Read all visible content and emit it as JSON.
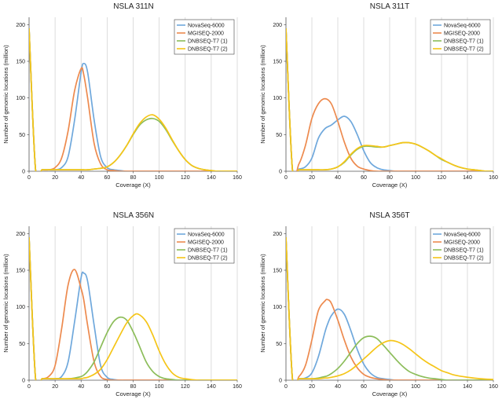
{
  "colors": {
    "NovaSeq-6000": "#6fa8dc",
    "MGISEQ-2000": "#ed8a4e",
    "DNBSEQ-T7 (1)": "#8cbd5a",
    "DNBSEQ-T7 (2)": "#f5c518"
  },
  "chart_data": [
    {
      "type": "line",
      "title": "NSLA 311N",
      "xlabel": "Coverage (X)",
      "ylabel": "Number of genomic locations (million)",
      "xlim": [
        0,
        160
      ],
      "ylim": [
        0,
        210
      ],
      "xticks": [
        0,
        20,
        40,
        60,
        80,
        100,
        120,
        140,
        160
      ],
      "yticks": [
        0,
        50,
        100,
        150,
        200
      ],
      "x": [
        0,
        5,
        10,
        15,
        20,
        25,
        30,
        35,
        40,
        42,
        45,
        50,
        55,
        60,
        65,
        70,
        75,
        80,
        85,
        90,
        95,
        100,
        105,
        110,
        115,
        120,
        125,
        130,
        135,
        140,
        145,
        150,
        155,
        160
      ],
      "series": [
        {
          "name": "NovaSeq-6000",
          "values": [
            195,
            2,
            2,
            2,
            2,
            5,
            20,
            70,
            135,
            147,
            135,
            70,
            20,
            5,
            2,
            1,
            0,
            0,
            0,
            0,
            0,
            0,
            0,
            0,
            0,
            0,
            0,
            0,
            0,
            0,
            0,
            0,
            0,
            0
          ]
        },
        {
          "name": "MGISEQ-2000",
          "values": [
            195,
            2,
            2,
            2,
            5,
            18,
            55,
            110,
            140,
            132,
            100,
            38,
            10,
            2,
            1,
            0,
            0,
            0,
            0,
            0,
            0,
            0,
            0,
            0,
            0,
            0,
            0,
            0,
            0,
            0,
            0,
            0,
            0,
            0
          ]
        },
        {
          "name": "DNBSEQ-T7 (1)",
          "values": [
            195,
            2,
            2,
            2,
            2,
            2,
            2,
            2,
            2,
            2,
            2,
            3,
            4,
            6,
            12,
            22,
            35,
            50,
            63,
            70,
            72,
            68,
            57,
            42,
            28,
            16,
            8,
            4,
            2,
            1,
            0,
            0,
            0,
            0
          ]
        },
        {
          "name": "DNBSEQ-T7 (2)",
          "values": [
            195,
            2,
            2,
            2,
            2,
            2,
            2,
            2,
            2,
            2,
            2,
            3,
            4,
            6,
            12,
            22,
            35,
            51,
            65,
            74,
            77,
            71,
            59,
            43,
            28,
            16,
            8,
            4,
            2,
            1,
            0,
            0,
            0,
            0
          ]
        }
      ]
    },
    {
      "type": "line",
      "title": "NSLA 311T",
      "xlabel": "Coverage (X)",
      "ylabel": "Number of genomic locations (million)",
      "xlim": [
        0,
        160
      ],
      "ylim": [
        0,
        210
      ],
      "xticks": [
        0,
        20,
        40,
        60,
        80,
        100,
        120,
        140,
        160
      ],
      "yticks": [
        0,
        50,
        100,
        150,
        200
      ],
      "x": [
        0,
        5,
        10,
        15,
        20,
        25,
        30,
        35,
        40,
        45,
        50,
        55,
        60,
        65,
        70,
        75,
        80,
        85,
        90,
        95,
        100,
        105,
        110,
        115,
        120,
        125,
        130,
        135,
        140,
        145,
        150,
        155,
        160
      ],
      "series": [
        {
          "name": "NovaSeq-6000",
          "values": [
            195,
            2,
            3,
            6,
            18,
            45,
            58,
            63,
            70,
            75,
            68,
            50,
            28,
            12,
            5,
            2,
            1,
            0,
            0,
            0,
            0,
            0,
            0,
            0,
            0,
            0,
            0,
            0,
            0,
            0,
            0,
            0,
            0
          ]
        },
        {
          "name": "MGISEQ-2000",
          "values": [
            195,
            3,
            10,
            35,
            72,
            92,
            99,
            92,
            68,
            40,
            18,
            7,
            3,
            1,
            0,
            0,
            0,
            0,
            0,
            0,
            0,
            0,
            0,
            0,
            0,
            0,
            0,
            0,
            0,
            0,
            0,
            0,
            0
          ]
        },
        {
          "name": "DNBSEQ-T7 (1)",
          "values": [
            195,
            2,
            2,
            2,
            2,
            2,
            2,
            3,
            6,
            12,
            22,
            30,
            34,
            34,
            33,
            33,
            35,
            37,
            39,
            39,
            37,
            33,
            28,
            22,
            16,
            12,
            8,
            5,
            3,
            2,
            1,
            0,
            0
          ]
        },
        {
          "name": "DNBSEQ-T7 (2)",
          "values": [
            195,
            2,
            2,
            2,
            2,
            2,
            2,
            3,
            6,
            13,
            23,
            31,
            35,
            35,
            34,
            33,
            35,
            37,
            39,
            39,
            37,
            33,
            28,
            22,
            17,
            12,
            8,
            5,
            3,
            2,
            1,
            0,
            0
          ]
        }
      ]
    },
    {
      "type": "line",
      "title": "NSLA 356N",
      "xlabel": "Coverage (X)",
      "ylabel": "Number of genomic locations (million)",
      "xlim": [
        0,
        160
      ],
      "ylim": [
        0,
        210
      ],
      "xticks": [
        0,
        20,
        40,
        60,
        80,
        100,
        120,
        140,
        160
      ],
      "yticks": [
        0,
        50,
        100,
        150,
        200
      ],
      "x": [
        0,
        5,
        10,
        15,
        20,
        25,
        30,
        35,
        40,
        42,
        45,
        50,
        55,
        60,
        65,
        70,
        75,
        80,
        84,
        90,
        95,
        100,
        105,
        110,
        115,
        120,
        130,
        140,
        150,
        160
      ],
      "series": [
        {
          "name": "NovaSeq-6000",
          "values": [
            195,
            2,
            2,
            2,
            2,
            5,
            25,
            80,
            140,
            146,
            135,
            75,
            20,
            4,
            1,
            0,
            0,
            0,
            0,
            0,
            0,
            0,
            0,
            0,
            0,
            0,
            0,
            0,
            0,
            0
          ]
        },
        {
          "name": "MGISEQ-2000",
          "values": [
            195,
            2,
            2,
            5,
            20,
            70,
            130,
            151,
            125,
            110,
            75,
            25,
            5,
            1,
            0,
            0,
            0,
            0,
            0,
            0,
            0,
            0,
            0,
            0,
            0,
            0,
            0,
            0,
            0,
            0
          ]
        },
        {
          "name": "DNBSEQ-T7 (1)",
          "values": [
            195,
            2,
            2,
            2,
            2,
            2,
            2,
            3,
            5,
            7,
            12,
            25,
            45,
            65,
            80,
            86,
            82,
            66,
            50,
            25,
            12,
            5,
            2,
            1,
            0,
            0,
            0,
            0,
            0,
            0
          ]
        },
        {
          "name": "DNBSEQ-T7 (2)",
          "values": [
            195,
            2,
            2,
            2,
            2,
            2,
            2,
            2,
            2,
            3,
            4,
            8,
            15,
            28,
            45,
            62,
            78,
            88,
            90,
            80,
            62,
            40,
            22,
            10,
            4,
            2,
            0,
            0,
            0,
            0
          ]
        }
      ]
    },
    {
      "type": "line",
      "title": "NSLA 356T",
      "xlabel": "Coverage (X)",
      "ylabel": "Number of genomic locations (million)",
      "xlim": [
        0,
        160
      ],
      "ylim": [
        0,
        210
      ],
      "xticks": [
        0,
        20,
        40,
        60,
        80,
        100,
        120,
        140,
        160
      ],
      "yticks": [
        0,
        50,
        100,
        150,
        200
      ],
      "x": [
        0,
        5,
        10,
        15,
        20,
        25,
        30,
        32,
        35,
        40,
        45,
        50,
        55,
        60,
        65,
        70,
        75,
        80,
        85,
        90,
        95,
        100,
        105,
        110,
        115,
        120,
        125,
        130,
        140,
        150,
        160
      ],
      "series": [
        {
          "name": "NovaSeq-6000",
          "values": [
            195,
            2,
            2,
            3,
            10,
            32,
            65,
            76,
            88,
            97,
            90,
            68,
            42,
            22,
            10,
            4,
            2,
            1,
            0,
            0,
            0,
            0,
            0,
            0,
            0,
            0,
            0,
            0,
            0,
            0,
            0
          ]
        },
        {
          "name": "MGISEQ-2000",
          "values": [
            195,
            2,
            5,
            20,
            55,
            95,
            108,
            110,
            105,
            82,
            55,
            32,
            17,
            8,
            4,
            2,
            1,
            0,
            0,
            0,
            0,
            0,
            0,
            0,
            0,
            0,
            0,
            0,
            0,
            0,
            0
          ]
        },
        {
          "name": "DNBSEQ-T7 (1)",
          "values": [
            195,
            2,
            2,
            2,
            2,
            3,
            5,
            6,
            9,
            16,
            26,
            38,
            50,
            58,
            60,
            57,
            48,
            38,
            28,
            19,
            12,
            8,
            5,
            3,
            2,
            1,
            0,
            0,
            0,
            0,
            0
          ]
        },
        {
          "name": "DNBSEQ-T7 (2)",
          "values": [
            195,
            2,
            2,
            2,
            2,
            2,
            3,
            3,
            4,
            6,
            9,
            14,
            21,
            29,
            37,
            45,
            51,
            54,
            53,
            49,
            43,
            36,
            29,
            23,
            18,
            13,
            10,
            7,
            4,
            2,
            1
          ]
        }
      ]
    }
  ]
}
